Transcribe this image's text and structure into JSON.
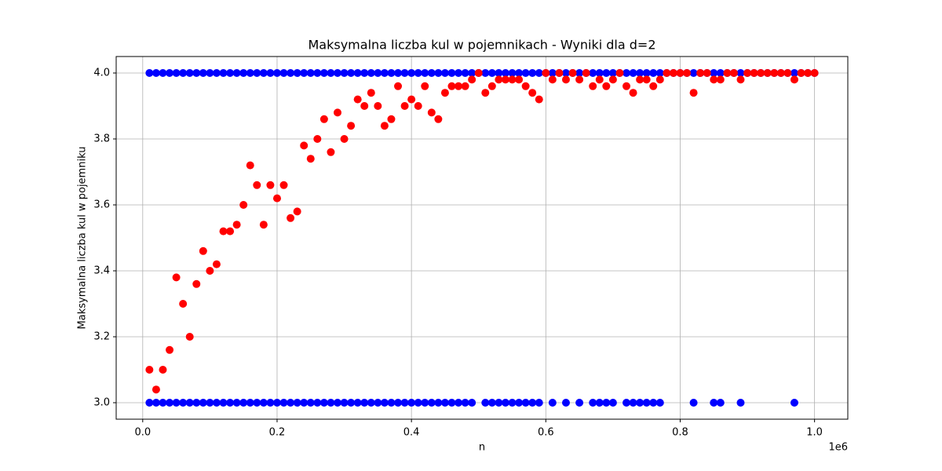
{
  "chart_data": {
    "type": "scatter",
    "title": "Maksymalna liczba kul w pojemnikach - Wyniki dla d=2",
    "x_label": "n",
    "y_label": "Maksymalna liczba kul w pojemniku",
    "x_offset_label": "1e6",
    "xlim": [
      -39500,
      1049500
    ],
    "ylim": [
      2.95,
      4.05
    ],
    "xticks": [
      {
        "value": 0,
        "label": "0.0"
      },
      {
        "value": 200000,
        "label": "0.2"
      },
      {
        "value": 400000,
        "label": "0.4"
      },
      {
        "value": 600000,
        "label": "0.6"
      },
      {
        "value": 800000,
        "label": "0.8"
      },
      {
        "value": 1000000,
        "label": "1.0"
      }
    ],
    "yticks": [
      {
        "value": 3,
        "label": "3.0"
      },
      3.2,
      3.4,
      3.6,
      3.8,
      {
        "value": 4,
        "label": "4.0"
      }
    ],
    "grid": true,
    "series": [
      {
        "color": "#0000ff",
        "x": [
          10000,
          20000,
          30000,
          40000,
          50000,
          60000,
          70000,
          80000,
          90000,
          100000,
          110000,
          120000,
          130000,
          140000,
          150000,
          160000,
          170000,
          180000,
          190000,
          200000,
          210000,
          220000,
          230000,
          240000,
          250000,
          260000,
          270000,
          280000,
          290000,
          300000,
          310000,
          320000,
          330000,
          340000,
          350000,
          360000,
          370000,
          380000,
          390000,
          400000,
          410000,
          420000,
          430000,
          440000,
          450000,
          460000,
          470000,
          480000,
          490000,
          500000,
          510000,
          520000,
          530000,
          540000,
          550000,
          560000,
          570000,
          580000,
          590000,
          600000,
          610000,
          620000,
          630000,
          640000,
          650000,
          660000,
          670000,
          680000,
          690000,
          700000,
          710000,
          720000,
          730000,
          740000,
          750000,
          760000,
          770000,
          780000,
          790000,
          800000,
          810000,
          820000,
          830000,
          840000,
          850000,
          860000,
          870000,
          880000,
          890000,
          900000,
          910000,
          920000,
          930000,
          940000,
          950000,
          960000,
          970000,
          980000,
          990000,
          1000000
        ],
        "values": [
          4,
          4,
          4,
          4,
          4,
          4,
          4,
          4,
          4,
          4,
          4,
          4,
          4,
          4,
          4,
          4,
          4,
          4,
          4,
          4,
          4,
          4,
          4,
          4,
          4,
          4,
          4,
          4,
          4,
          4,
          4,
          4,
          4,
          4,
          4,
          4,
          4,
          4,
          4,
          4,
          4,
          4,
          4,
          4,
          4,
          4,
          4,
          4,
          4,
          4,
          4,
          4,
          4,
          4,
          4,
          4,
          4,
          4,
          4,
          4,
          4,
          4,
          4,
          4,
          4,
          4,
          4,
          4,
          4,
          4,
          4,
          4,
          4,
          4,
          4,
          4,
          4,
          4,
          4,
          4,
          4,
          4,
          4,
          4,
          4,
          4,
          4,
          4,
          4,
          4,
          4,
          4,
          4,
          4,
          4,
          4,
          4,
          4,
          4,
          4
        ]
      },
      {
        "color": "#0000ff",
        "x": [
          10000,
          20000,
          30000,
          40000,
          50000,
          60000,
          70000,
          80000,
          90000,
          100000,
          110000,
          120000,
          130000,
          140000,
          150000,
          160000,
          170000,
          180000,
          190000,
          200000,
          210000,
          220000,
          230000,
          240000,
          250000,
          260000,
          270000,
          280000,
          290000,
          300000,
          310000,
          320000,
          330000,
          340000,
          350000,
          360000,
          370000,
          380000,
          390000,
          400000,
          410000,
          420000,
          430000,
          440000,
          450000,
          460000,
          470000,
          480000,
          490000,
          510000,
          520000,
          530000,
          540000,
          550000,
          560000,
          570000,
          580000,
          590000,
          610000,
          630000,
          650000,
          670000,
          680000,
          690000,
          700000,
          720000,
          730000,
          740000,
          750000,
          760000,
          770000,
          820000,
          850000,
          860000,
          890000,
          970000
        ],
        "values": [
          3,
          3,
          3,
          3,
          3,
          3,
          3,
          3,
          3,
          3,
          3,
          3,
          3,
          3,
          3,
          3,
          3,
          3,
          3,
          3,
          3,
          3,
          3,
          3,
          3,
          3,
          3,
          3,
          3,
          3,
          3,
          3,
          3,
          3,
          3,
          3,
          3,
          3,
          3,
          3,
          3,
          3,
          3,
          3,
          3,
          3,
          3,
          3,
          3,
          3,
          3,
          3,
          3,
          3,
          3,
          3,
          3,
          3,
          3,
          3,
          3,
          3,
          3,
          3,
          3,
          3,
          3,
          3,
          3,
          3,
          3,
          3,
          3,
          3,
          3,
          3
        ]
      },
      {
        "color": "#ff0000",
        "x": [
          10000,
          20000,
          30000,
          40000,
          50000,
          60000,
          70000,
          80000,
          90000,
          100000,
          110000,
          120000,
          130000,
          140000,
          150000,
          160000,
          170000,
          180000,
          190000,
          200000,
          210000,
          220000,
          230000,
          240000,
          250000,
          260000,
          270000,
          280000,
          290000,
          300000,
          310000,
          320000,
          330000,
          340000,
          350000,
          360000,
          370000,
          380000,
          390000,
          400000,
          410000,
          420000,
          430000,
          440000,
          450000,
          460000,
          470000,
          480000,
          490000,
          500000,
          510000,
          520000,
          530000,
          540000,
          550000,
          560000,
          570000,
          580000,
          590000,
          600000,
          610000,
          620000,
          630000,
          640000,
          650000,
          660000,
          670000,
          680000,
          690000,
          700000,
          710000,
          720000,
          730000,
          740000,
          750000,
          760000,
          770000,
          780000,
          790000,
          800000,
          810000,
          820000,
          830000,
          840000,
          850000,
          860000,
          870000,
          880000,
          890000,
          900000,
          910000,
          920000,
          930000,
          940000,
          950000,
          960000,
          970000,
          980000,
          990000,
          1000000
        ],
        "values": [
          3.1,
          3.04,
          3.1,
          3.16,
          3.38,
          3.3,
          3.2,
          3.36,
          3.46,
          3.4,
          3.42,
          3.52,
          3.52,
          3.54,
          3.6,
          3.72,
          3.66,
          3.54,
          3.66,
          3.62,
          3.66,
          3.56,
          3.58,
          3.78,
          3.74,
          3.8,
          3.86,
          3.76,
          3.88,
          3.8,
          3.84,
          3.92,
          3.9,
          3.94,
          3.9,
          3.84,
          3.86,
          3.96,
          3.9,
          3.92,
          3.9,
          3.96,
          3.88,
          3.86,
          3.94,
          3.96,
          3.96,
          3.96,
          3.98,
          4,
          3.94,
          3.96,
          3.98,
          3.98,
          3.98,
          3.98,
          3.96,
          3.94,
          3.92,
          4,
          3.98,
          4,
          3.98,
          4,
          3.98,
          4,
          3.96,
          3.98,
          3.96,
          3.98,
          4,
          3.96,
          3.94,
          3.98,
          3.98,
          3.96,
          3.98,
          4,
          4,
          4,
          4,
          3.94,
          4,
          4,
          3.98,
          3.98,
          4,
          4,
          3.98,
          4,
          4,
          4,
          4,
          4,
          4,
          4,
          3.98,
          4,
          4,
          4
        ]
      }
    ]
  }
}
